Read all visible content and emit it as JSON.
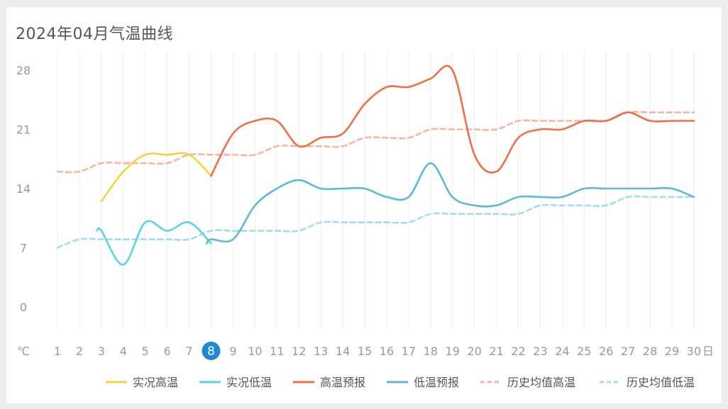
{
  "chart_data": {
    "type": "line",
    "title": "2024年04月气温曲线",
    "y_unit": "℃",
    "x_unit": "日",
    "ylim": [
      -4,
      29
    ],
    "y_ticks": [
      0,
      7,
      14,
      21,
      28
    ],
    "x_ticks": [
      1,
      2,
      3,
      4,
      5,
      6,
      7,
      8,
      9,
      10,
      11,
      12,
      13,
      14,
      15,
      16,
      17,
      18,
      19,
      20,
      21,
      22,
      23,
      24,
      25,
      26,
      27,
      28,
      29,
      30
    ],
    "current_day": 8,
    "series": [
      {
        "name": "实况高温",
        "color": "#f5d33f",
        "dashed": false,
        "x": [
          3,
          4,
          5,
          6,
          7,
          8
        ],
        "y": [
          12.5,
          16,
          18,
          18,
          18,
          15.5
        ]
      },
      {
        "name": "实况低温",
        "color": "#5bd3ee",
        "dashed": false,
        "x": [
          2.8,
          3,
          4,
          5,
          6,
          7,
          8
        ],
        "y": [
          9,
          9,
          5,
          10,
          9,
          10,
          7.5
        ]
      },
      {
        "name": "高温预报",
        "color": "#f36e46",
        "dashed": false,
        "x": [
          8,
          9,
          10,
          11,
          12,
          13,
          14,
          15,
          16,
          17,
          18,
          19,
          20,
          21,
          22,
          23,
          24,
          25,
          26,
          27,
          28,
          29,
          30
        ],
        "y": [
          15.5,
          20.5,
          22,
          22,
          19,
          20,
          20.5,
          24,
          26,
          26,
          27,
          28,
          18,
          16,
          20,
          21,
          21,
          22,
          22,
          23,
          22,
          22,
          22
        ]
      },
      {
        "name": "低温预报",
        "color": "#5bbad6",
        "dashed": false,
        "x": [
          7.8,
          8,
          9,
          10,
          11,
          12,
          13,
          14,
          15,
          16,
          17,
          18,
          19,
          20,
          21,
          22,
          23,
          24,
          25,
          26,
          27,
          28,
          29,
          30
        ],
        "y": [
          7.5,
          8,
          8,
          12,
          14,
          15,
          14,
          14,
          14,
          13,
          13,
          17,
          13,
          12,
          12,
          13,
          13,
          13,
          14,
          14,
          14,
          14,
          14,
          13
        ]
      },
      {
        "name": "历史均值高温",
        "color": "#f8b5a1",
        "dashed": true,
        "x": [
          1,
          2,
          3,
          4,
          5,
          6,
          7,
          8,
          9,
          10,
          11,
          12,
          13,
          14,
          15,
          16,
          17,
          18,
          19,
          20,
          21,
          22,
          23,
          24,
          25,
          26,
          27,
          28,
          29,
          30
        ],
        "y": [
          16,
          16,
          17,
          17,
          17,
          17,
          18,
          18,
          18,
          18,
          19,
          19,
          19,
          19,
          20,
          20,
          20,
          21,
          21,
          21,
          21,
          22,
          22,
          22,
          22,
          22,
          23,
          23,
          23,
          23
        ]
      },
      {
        "name": "历史均值低温",
        "color": "#a3dcec",
        "dashed": true,
        "x": [
          1,
          2,
          3,
          4,
          5,
          6,
          7,
          8,
          9,
          10,
          11,
          12,
          13,
          14,
          15,
          16,
          17,
          18,
          19,
          20,
          21,
          22,
          23,
          24,
          25,
          26,
          27,
          28,
          29,
          30
        ],
        "y": [
          7,
          8,
          8,
          8,
          8,
          8,
          8,
          9,
          9,
          9,
          9,
          9,
          10,
          10,
          10,
          10,
          10,
          11,
          11,
          11,
          11,
          11,
          12,
          12,
          12,
          12,
          13,
          13,
          13,
          13
        ]
      }
    ],
    "legend_position": "bottom-right",
    "grid": "vertical"
  }
}
